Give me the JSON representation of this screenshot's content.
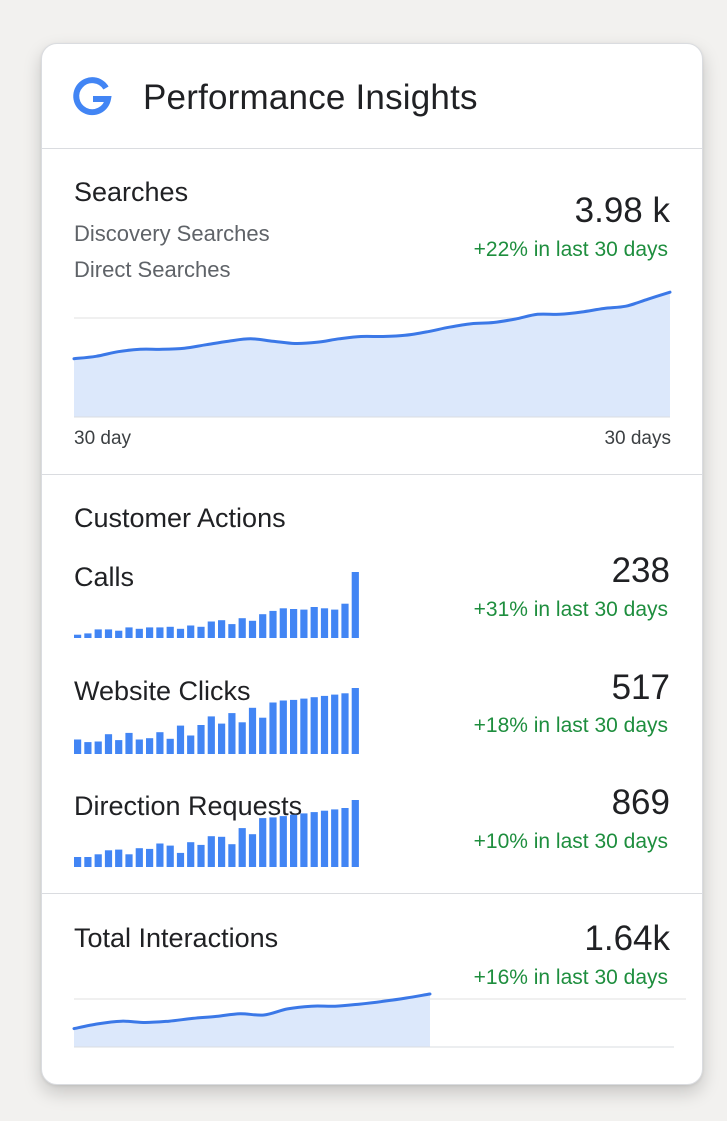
{
  "header": {
    "title": "Performance Insights",
    "logo_icon": "google-g-logo"
  },
  "searches": {
    "title": "Searches",
    "sub_items": [
      "Discovery Searches",
      "Direct Searches"
    ],
    "value": "3.98 k",
    "trend": "+22% in last 30 days",
    "axis_start": "30 day",
    "axis_end": "30 days"
  },
  "customer_actions": {
    "title": "Customer Actions",
    "metrics": [
      {
        "label": "Calls",
        "value": "238",
        "trend": "+31% in last 30 days"
      },
      {
        "label": "Website Clicks",
        "value": "517",
        "trend": "+18% in last 30 days"
      },
      {
        "label": "Direction Requests",
        "value": "869",
        "trend": "+10% in last 30 days"
      }
    ]
  },
  "total_interactions": {
    "title": "Total Interactions",
    "value": "1.64k",
    "trend": "+16% in last 30 days"
  },
  "colors": {
    "accent": "#4285f4",
    "line": "#3b78e7",
    "area": "#dce8fb",
    "trend_positive": "#1e8e3e"
  },
  "chart_data": [
    {
      "type": "area",
      "name": "searches-trend",
      "x": [
        1,
        2,
        3,
        4,
        5,
        6,
        7,
        8,
        9,
        10,
        11,
        12,
        13,
        14,
        15,
        16,
        17,
        18,
        19,
        20,
        21,
        22,
        23,
        24,
        25,
        26,
        27,
        28
      ],
      "values": [
        50,
        52,
        56,
        58,
        58,
        59,
        62,
        65,
        67,
        65,
        63,
        64,
        67,
        69,
        69,
        70,
        73,
        77,
        80,
        81,
        84,
        88,
        88,
        90,
        93,
        95,
        101,
        107
      ],
      "ylim": [
        0,
        120
      ]
    },
    {
      "type": "bar",
      "name": "calls-daily",
      "x": [
        1,
        2,
        3,
        4,
        5,
        6,
        7,
        8,
        9,
        10,
        11,
        12,
        13,
        14,
        15,
        16,
        17,
        18,
        19,
        20,
        21,
        22,
        23,
        24,
        25,
        26,
        27,
        28
      ],
      "values": [
        5,
        7,
        13,
        13,
        11,
        16,
        14,
        16,
        16,
        17,
        14,
        19,
        17,
        25,
        27,
        21,
        30,
        26,
        36,
        41,
        45,
        44,
        43,
        47,
        45,
        43,
        52,
        100
      ],
      "ylim": [
        0,
        100
      ]
    },
    {
      "type": "bar",
      "name": "website-clicks-daily",
      "x": [
        1,
        2,
        3,
        4,
        5,
        6,
        7,
        8,
        9,
        10,
        11,
        12,
        13,
        14,
        15,
        16,
        17,
        18,
        19,
        20,
        21,
        22,
        23,
        24,
        25,
        26,
        27,
        28
      ],
      "values": [
        22,
        18,
        19,
        30,
        21,
        32,
        22,
        24,
        33,
        23,
        43,
        28,
        44,
        57,
        46,
        62,
        48,
        70,
        55,
        78,
        81,
        82,
        84,
        86,
        88,
        90,
        92,
        100
      ],
      "ylim": [
        0,
        100
      ]
    },
    {
      "type": "bar",
      "name": "direction-requests-daily",
      "x": [
        1,
        2,
        3,
        4,
        5,
        6,
        7,
        8,
        9,
        10,
        11,
        12,
        13,
        14,
        15,
        16,
        17,
        18,
        19,
        20,
        21,
        22,
        23,
        24,
        25,
        26,
        27,
        28
      ],
      "values": [
        15,
        15,
        19,
        25,
        26,
        19,
        28,
        27,
        35,
        32,
        21,
        37,
        33,
        46,
        45,
        34,
        58,
        49,
        73,
        74,
        76,
        78,
        80,
        82,
        84,
        86,
        88,
        100
      ],
      "ylim": [
        0,
        100
      ]
    },
    {
      "type": "area",
      "name": "total-interactions-trend",
      "x": [
        1,
        2,
        3,
        4,
        5,
        6,
        7,
        8,
        9,
        10,
        11,
        12,
        13,
        14,
        15,
        16
      ],
      "values": [
        27,
        34,
        38,
        36,
        38,
        42,
        45,
        49,
        47,
        56,
        60,
        60,
        63,
        67,
        72,
        78
      ],
      "ylim": [
        0,
        100
      ]
    }
  ]
}
